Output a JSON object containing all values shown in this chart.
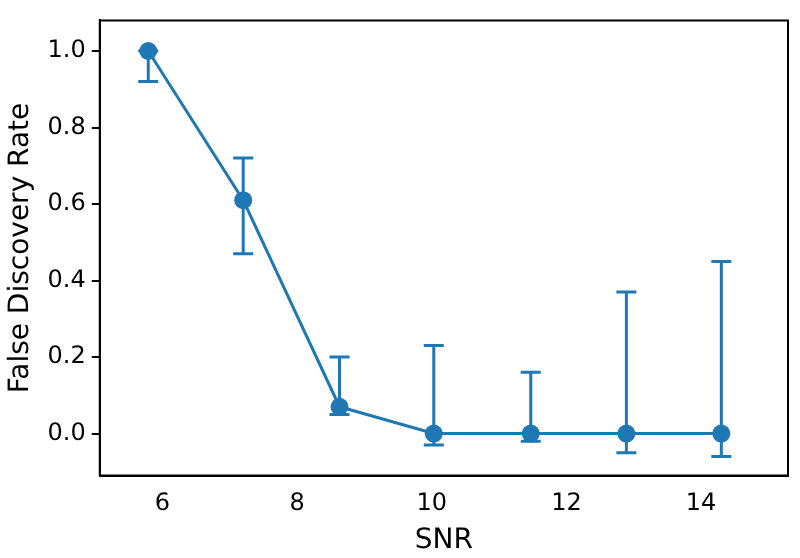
{
  "chart_data": {
    "type": "line",
    "xlabel": "SNR",
    "ylabel": "False Discovery Rate",
    "x": [
      5.79,
      7.2,
      8.63,
      10.03,
      11.47,
      12.89,
      14.3
    ],
    "series": [
      {
        "color": "#1f77b4",
        "values": [
          1.0,
          0.61,
          0.07,
          0,
          0,
          0,
          0
        ],
        "errors": [
          [
            0.92,
            1.0
          ],
          [
            0.47,
            0.72
          ],
          [
            0.05,
            0.2
          ],
          [
            -0.03,
            0.23
          ],
          [
            -0.02,
            0.16
          ],
          [
            -0.05,
            0.37
          ],
          [
            -0.06,
            0.45
          ]
        ]
      }
    ],
    "xlim": [
      5.07,
      15.29
    ],
    "xticks": [
      6,
      8,
      10,
      12,
      14
    ],
    "ylim": [
      -0.11,
      1.08
    ],
    "yticks": [
      {
        "value": 0,
        "label": "0.0"
      },
      0.2,
      0.4,
      0.6,
      0.8,
      {
        "value": 1,
        "label": "1.0"
      }
    ],
    "grid": false,
    "legend": false,
    "marker": "circle",
    "line_style": "solid"
  }
}
